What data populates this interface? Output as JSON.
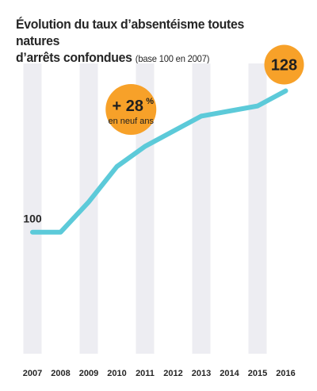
{
  "title_line1": "Évolution du taux d’absentéisme toutes natures",
  "title_line2": "d’arrêts confondues",
  "title_sub": "(base 100 en 2007)",
  "colors": {
    "line": "#5ccad9",
    "band": "#ededf2",
    "bubble": "#f7a129",
    "text": "#262626"
  },
  "chart_data": {
    "type": "line",
    "title": "Évolution du taux d’absentéisme toutes natures d’arrêts confondues (base 100 en 2007)",
    "x": [
      "2007",
      "2008",
      "2009",
      "2010",
      "2011",
      "2012",
      "2013",
      "2014",
      "2015",
      "2016"
    ],
    "series": [
      {
        "values": [
          100,
          100,
          106,
          113,
          117,
          120,
          123,
          124,
          125,
          128
        ]
      }
    ],
    "ylim": [
      80,
      135
    ],
    "grid": false,
    "start_label": "100",
    "end_label": "128",
    "annotation": {
      "main": "+ 28",
      "unit": "%",
      "sub": "en neuf ans"
    }
  }
}
